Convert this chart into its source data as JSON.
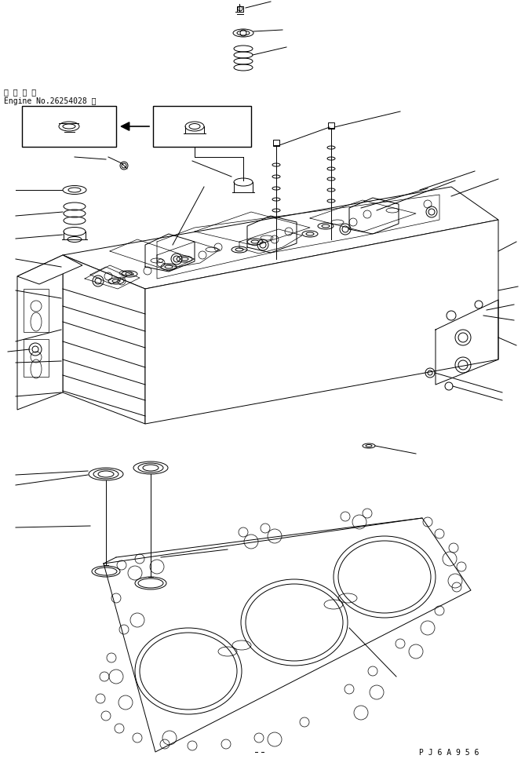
{
  "background_color": "#ffffff",
  "line_color": "#000000",
  "fig_width": 6.69,
  "fig_height": 9.67,
  "dpi": 100,
  "text_line1": "適 用 号 機",
  "text_line2": "Engine No.26254028 ～",
  "bottom_right_text": "P J 6 A 9 5 6",
  "font_size_label": 7,
  "font_size_bottom": 7,
  "lw_main": 0.7,
  "lw_thin": 0.5
}
